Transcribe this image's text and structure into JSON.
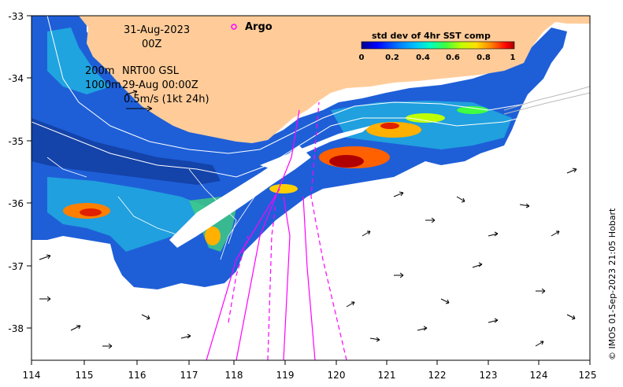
{
  "map": {
    "lon_ticks": [
      "114",
      "115",
      "116",
      "117",
      "118",
      "119",
      "120",
      "121",
      "122",
      "123",
      "124",
      "125"
    ],
    "lat_ticks": [
      "-33",
      "-34",
      "-35",
      "-36",
      "-37",
      "-38"
    ],
    "lon_range": [
      114,
      125
    ],
    "lat_range": [
      -38.5,
      -33
    ],
    "land_color": "#ffcc99",
    "ocean_color": "#ffffff"
  },
  "annotations": {
    "date": "31-Aug-2023",
    "time": "00Z",
    "contour_200m": "200m",
    "contour_1000m": "1000m",
    "product": "NRT00 GSL",
    "product_time": "29-Aug 00:00Z",
    "vector_scale": "0.5m/s (1kt 24h)"
  },
  "legend": {
    "argo_label": "Argo",
    "argo_color": "#ff00ff"
  },
  "colorbar": {
    "title": "std dev of 4hr SST comp",
    "ticks": [
      "0",
      "0.2",
      "0.4",
      "0.6",
      "0.8",
      "1"
    ],
    "colors": [
      "#00008b",
      "#0000ff",
      "#0080ff",
      "#00c0ff",
      "#00ffc0",
      "#40ff40",
      "#c0ff00",
      "#ffe000",
      "#ff8000",
      "#ff0000",
      "#a00000"
    ]
  },
  "credit": "© IMOS 01-Sep-2023 21:05 Hobart"
}
